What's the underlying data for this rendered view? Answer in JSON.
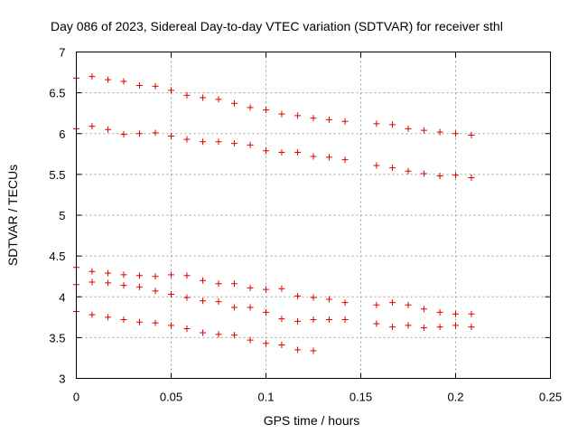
{
  "chart_data": {
    "type": "scatter",
    "title": "Day 086 of 2023, Sidereal Day-to-day VTEC variation (SDTVAR) for receiver sthl",
    "xlabel": "GPS time / hours",
    "ylabel": "SDTVAR / TECUs",
    "xlim": [
      0,
      0.25
    ],
    "ylim": [
      3,
      7
    ],
    "xticks": [
      0,
      0.05,
      0.1,
      0.15,
      0.2,
      0.25
    ],
    "xtick_labels": [
      "0",
      "0.05",
      "0.1",
      "0.15",
      "0.2",
      "0.25"
    ],
    "yticks": [
      3,
      3.5,
      4,
      4.5,
      5,
      5.5,
      6,
      6.5,
      7
    ],
    "ytick_labels": [
      "3",
      "3.5",
      "4",
      "4.5",
      "5",
      "5.5",
      "6",
      "6.5",
      "7"
    ],
    "grid": true,
    "marker": "+",
    "color": "#e00000",
    "series": [
      {
        "name": "series-1",
        "x": [
          0,
          0.0083,
          0.0167,
          0.025,
          0.0333,
          0.0417,
          0.05,
          0.0583,
          0.0667,
          0.075,
          0.0833,
          0.0917,
          0.1,
          0.1083,
          0.1167,
          0.125,
          0.1333,
          0.1417,
          0.1583,
          0.1667,
          0.175,
          0.1833,
          0.1917,
          0.2,
          0.2083
        ],
        "y": [
          6.68,
          6.7,
          6.66,
          6.64,
          6.59,
          6.58,
          6.53,
          6.47,
          6.44,
          6.42,
          6.37,
          6.32,
          6.29,
          6.24,
          6.22,
          6.19,
          6.17,
          6.15,
          6.12,
          6.11,
          6.06,
          6.04,
          6.02,
          6.0,
          5.98
        ]
      },
      {
        "name": "series-2",
        "x": [
          0,
          0.0083,
          0.0167,
          0.025,
          0.0333,
          0.0417,
          0.05,
          0.0583,
          0.0667,
          0.075,
          0.0833,
          0.0917,
          0.1,
          0.1083,
          0.1167,
          0.125,
          0.1333,
          0.1417,
          0.1583,
          0.1667,
          0.175,
          0.1833,
          0.1917,
          0.2,
          0.2083
        ],
        "y": [
          6.06,
          6.09,
          6.05,
          5.99,
          6.0,
          6.01,
          5.97,
          5.93,
          5.9,
          5.9,
          5.88,
          5.86,
          5.79,
          5.77,
          5.77,
          5.72,
          5.71,
          5.68,
          5.61,
          5.58,
          5.54,
          5.51,
          5.48,
          5.49,
          5.46
        ]
      },
      {
        "name": "series-3",
        "x": [
          0,
          0.0083,
          0.0167,
          0.025,
          0.0333,
          0.0417,
          0.05,
          0.0583,
          0.0667,
          0.075,
          0.0833,
          0.0917,
          0.1,
          0.1083,
          0.1167,
          0.125,
          0.1333,
          0.1417
        ],
        "y": [
          4.36,
          4.31,
          4.29,
          4.27,
          4.26,
          4.25,
          4.27,
          4.26,
          4.2,
          4.16,
          4.16,
          4.11,
          4.09,
          4.1,
          4.01,
          3.99,
          3.97,
          3.93
        ]
      },
      {
        "name": "series-4",
        "x": [
          0,
          0.0083,
          0.0167,
          0.025,
          0.0333,
          0.0417,
          0.05,
          0.0583,
          0.0667,
          0.075,
          0.0833,
          0.0917,
          0.1,
          0.1083,
          0.1167,
          0.125,
          0.1333,
          0.1417,
          0.1583,
          0.1667,
          0.175,
          0.1833,
          0.1917,
          0.2,
          0.2083
        ],
        "y": [
          4.15,
          4.18,
          4.17,
          4.14,
          4.12,
          4.07,
          4.03,
          3.99,
          3.95,
          3.94,
          3.87,
          3.87,
          3.81,
          3.73,
          3.7,
          3.72,
          3.72,
          3.72,
          3.9,
          3.93,
          3.9,
          3.85,
          3.81,
          3.79,
          3.79
        ]
      },
      {
        "name": "series-5",
        "x": [
          0,
          0.0083,
          0.0167,
          0.025,
          0.0333,
          0.0417,
          0.05,
          0.0583,
          0.0667,
          0.075,
          0.0833,
          0.0917,
          0.1,
          0.1083,
          0.1167,
          0.125,
          0.1583,
          0.1667,
          0.175,
          0.1833,
          0.1917,
          0.2,
          0.2083
        ],
        "y": [
          3.82,
          3.78,
          3.75,
          3.72,
          3.69,
          3.68,
          3.65,
          3.61,
          3.56,
          3.54,
          3.53,
          3.47,
          3.43,
          3.41,
          3.35,
          3.34,
          3.67,
          3.63,
          3.65,
          3.62,
          3.63,
          3.65,
          3.63
        ]
      }
    ]
  }
}
